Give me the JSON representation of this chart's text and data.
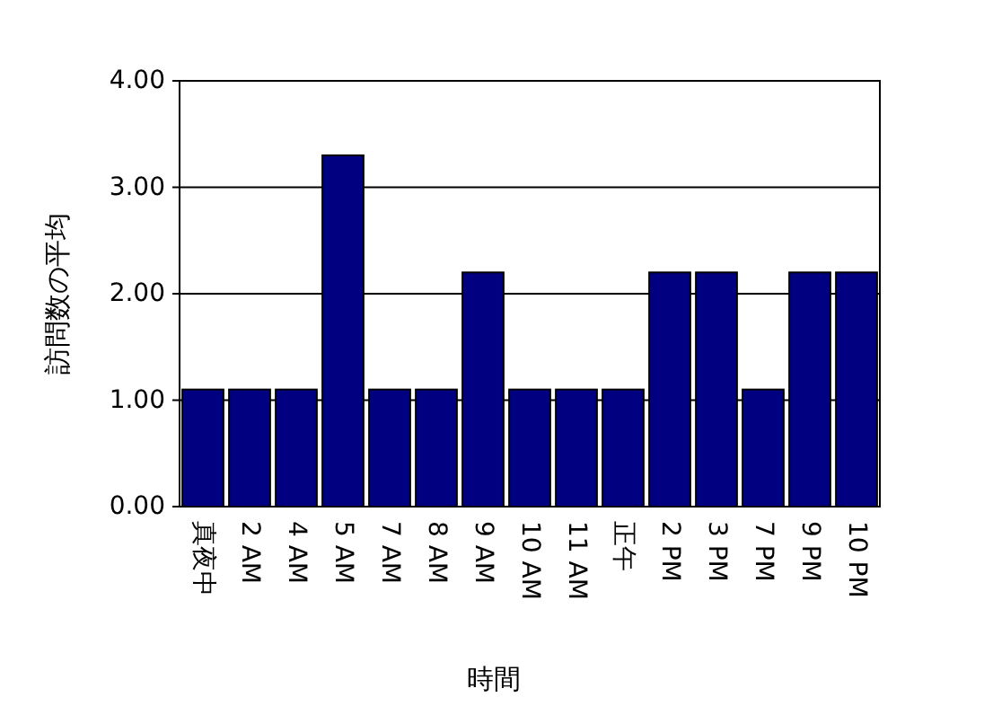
{
  "chart_data": {
    "type": "bar",
    "xlabel": "時間",
    "ylabel": "訪問数の平均",
    "categories": [
      "真夜中",
      "2 AM",
      "4 AM",
      "5 AM",
      "7 AM",
      "8 AM",
      "9 AM",
      "10 AM",
      "11 AM",
      "正午",
      "2 PM",
      "3 PM",
      "7 PM",
      "9 PM",
      "10 PM"
    ],
    "values": [
      1.1,
      1.1,
      1.1,
      3.3,
      1.1,
      1.1,
      2.2,
      1.1,
      1.1,
      1.1,
      2.2,
      2.2,
      1.1,
      2.2,
      2.2
    ],
    "color": "#000080",
    "ylim": [
      0,
      4
    ],
    "yticks": [
      {
        "value": 0,
        "label": "0.00"
      },
      {
        "value": 1,
        "label": "1.00"
      },
      {
        "value": 2,
        "label": "2.00"
      },
      {
        "value": 3,
        "label": "3.00"
      },
      {
        "value": 4,
        "label": "4.00"
      }
    ],
    "grid": "y"
  }
}
